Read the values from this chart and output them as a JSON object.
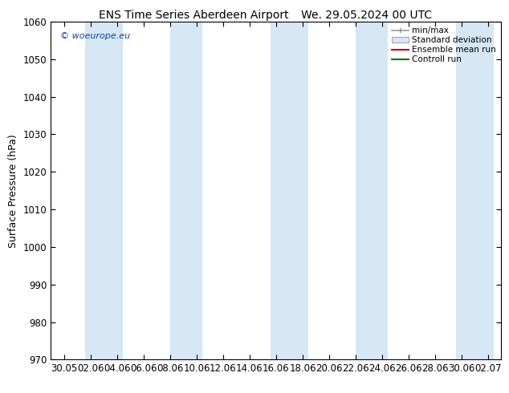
{
  "title_left": "ENS Time Series Aberdeen Airport",
  "title_right": "We. 29.05.2024 00 UTC",
  "ylabel": "Surface Pressure (hPa)",
  "ylim": [
    970,
    1060
  ],
  "yticks": [
    970,
    980,
    990,
    1000,
    1010,
    1020,
    1030,
    1040,
    1050,
    1060
  ],
  "x_labels": [
    "30.05",
    "02.06",
    "04.06",
    "06.06",
    "08.06",
    "10.06",
    "12.06",
    "14.06",
    "16.06",
    "18.06",
    "20.06",
    "22.06",
    "24.06",
    "26.06",
    "28.06",
    "30.06",
    "02.07"
  ],
  "watermark": "© woeurope.eu",
  "legend_entries": [
    "min/max",
    "Standard deviation",
    "Ensemble mean run",
    "Controll run"
  ],
  "bg_color": "#ffffff",
  "band_color": "#d6e8f5",
  "title_fontsize": 10,
  "axis_fontsize": 9,
  "tick_fontsize": 8.5
}
